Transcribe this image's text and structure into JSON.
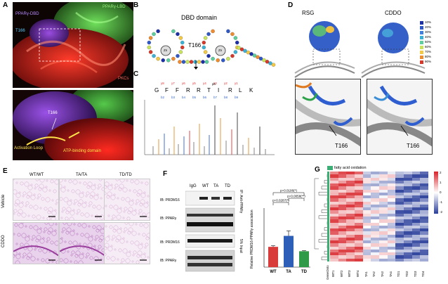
{
  "panels": {
    "A": {
      "label": "A",
      "pparg_dbd": "PPARγ-DBD",
      "pparg_lbd": "PPARγ-LBD",
      "t166": "T166",
      "pkcs": "PKCs",
      "zoom_t166": "T166",
      "activation_loop": "Activation Loop",
      "atp_domain": "ATP-binding domain"
    },
    "B": {
      "label": "B",
      "title": "DBD domain",
      "t166": "T166",
      "zn1": "Zn",
      "zn2": "Zn"
    },
    "C": {
      "label": "C",
      "sequence": [
        "G",
        "F",
        "F",
        "R",
        "R",
        "T",
        "I",
        "R",
        "L",
        "K"
      ],
      "marks": [
        "y8",
        "y7",
        "y6",
        "y5",
        "y4",
        "y3",
        "y2",
        "y1"
      ],
      "bmarks": [
        "b2",
        "b3",
        "b4",
        "b5",
        "b6",
        "b7",
        "b8",
        "b9"
      ],
      "ph": "ph"
    },
    "D": {
      "label": "D",
      "rsg": "RSG",
      "cddo": "CDDO",
      "t166_left": "T166",
      "t166_right": "T166",
      "scale": [
        "10%",
        "20%",
        "30%",
        "40%",
        "50%",
        "60%",
        "70%",
        "80%",
        "90%"
      ],
      "scale_colors": [
        "#1b2fa8",
        "#2f58c9",
        "#3f7fe0",
        "#3ab2d8",
        "#5ccf9e",
        "#c9e35a",
        "#f3c941",
        "#f08b2e",
        "#d8382a"
      ]
    },
    "E": {
      "label": "E",
      "cols": [
        "WT/WT",
        "TA/TA",
        "TD/TD"
      ],
      "rows": [
        "Vehicle",
        "CDDO"
      ]
    },
    "F": {
      "label": "F",
      "ip_labels": [
        "IgG",
        "WT",
        "TA",
        "TD"
      ],
      "blots": [
        "IB: PRDM16",
        "IB: PPARγ",
        "IB: PRDM16",
        "IB: PPARγ"
      ],
      "side_ip": "IP: Anti-PPARγ",
      "side_input": "5% Input",
      "pvals": [
        "p=0.0196(*)",
        "p=0.0287(*)",
        "p=0.0058(**)"
      ],
      "ylabel": "Relative PRDM16-PPARγ association"
    },
    "G": {
      "label": "G",
      "legend": "fatty acid oxidation",
      "col_labels": [
        "WT1",
        "WT2",
        "WT3",
        "WT4",
        "TA1",
        "TA2",
        "TA3",
        "TA4",
        "TD1",
        "TD2",
        "TD3",
        "TD4"
      ],
      "scale_top": "2",
      "scale_mid": "0",
      "scale_bot": "-2",
      "scale_one": "1",
      "scale_neg_one": "-1",
      "gene_label": "GeneOnto"
    }
  },
  "chart_data": {
    "type": "bar",
    "categories": [
      "WT",
      "TA",
      "TD"
    ],
    "values": [
      0.37,
      0.57,
      0.29
    ],
    "errors": [
      0.02,
      0.09,
      0.01
    ],
    "colors": [
      "#d93a3a",
      "#2d5fb8",
      "#2f9a48"
    ],
    "ylim": [
      0,
      1.0
    ],
    "ylabel": "Relative PRDM16-PPARγ association"
  }
}
